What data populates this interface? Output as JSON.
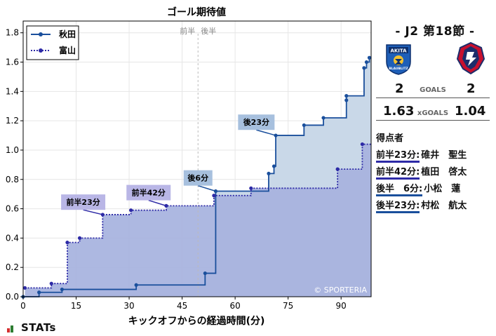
{
  "header": {
    "match_title": "- J2 第18節 -"
  },
  "teams": {
    "home": {
      "name": "秋田",
      "color": "#1a4f9c",
      "fill": "#c9d8e8",
      "emblem_icon": "blaublitz-akita-emblem-icon",
      "emblem_text_top": "AKITA",
      "emblem_text_bottom": "BLAUBLITZ"
    },
    "away": {
      "name": "富山",
      "color": "#2d2aa6",
      "fill": "#c9c6ec",
      "emblem_icon": "kataller-toyama-emblem-icon"
    }
  },
  "score": {
    "home_goals": "2",
    "away_goals": "2",
    "goals_label": "GOALS",
    "home_xg": "1.63",
    "away_xg": "1.04",
    "xg_label": "xGOALS"
  },
  "scorers": {
    "title": "得点者",
    "items": [
      {
        "time": "前半23分:",
        "name": "碓井　聖生",
        "team": "away"
      },
      {
        "time": "前半42分:",
        "name": "植田　啓太",
        "team": "away"
      },
      {
        "time": "後半　6分:",
        "name": "小松　蓮",
        "team": "home"
      },
      {
        "time": "後半23分:",
        "name": "村松　航太",
        "team": "home"
      }
    ]
  },
  "branding": {
    "stats_logo": "STATs"
  },
  "chart_data": {
    "type": "line",
    "title": "ゴール期待値",
    "xlabel": "キックオフからの経過時間(分)",
    "ylabel": "",
    "xlim": [
      0,
      98.5
    ],
    "ylim": [
      0,
      1.88
    ],
    "xticks": [
      0,
      15,
      30,
      45,
      60,
      75,
      90
    ],
    "yticks": [
      0.0,
      0.2,
      0.4,
      0.6,
      0.8,
      1.0,
      1.2,
      1.4,
      1.6,
      1.8
    ],
    "grid": true,
    "legend_position": "top-left",
    "halftime": {
      "x": 49.5,
      "left_label": "前半",
      "right_label": "後半"
    },
    "watermark": "© SPORTERIA",
    "series": [
      {
        "name": "秋田",
        "team": "home",
        "style": "solid",
        "points": [
          [
            0,
            0.0
          ],
          [
            4.5,
            0.03
          ],
          [
            11,
            0.05
          ],
          [
            32,
            0.08
          ],
          [
            51.5,
            0.16
          ],
          [
            54.5,
            0.72
          ],
          [
            69.5,
            0.84
          ],
          [
            71,
            0.89
          ],
          [
            71.5,
            1.1
          ],
          [
            79.5,
            1.17
          ],
          [
            85,
            1.22
          ],
          [
            91.5,
            1.34
          ],
          [
            91.5,
            1.37
          ],
          [
            96.5,
            1.56
          ],
          [
            97.2,
            1.6
          ],
          [
            98,
            1.63
          ]
        ],
        "end_x": 98.5
      },
      {
        "name": "富山",
        "team": "away",
        "style": "dotted",
        "points": [
          [
            0.5,
            0.06
          ],
          [
            8,
            0.09
          ],
          [
            12.5,
            0.37
          ],
          [
            16,
            0.4
          ],
          [
            22.5,
            0.56
          ],
          [
            30.5,
            0.59
          ],
          [
            40.5,
            0.62
          ],
          [
            54,
            0.69
          ],
          [
            64.5,
            0.74
          ],
          [
            89,
            0.87
          ],
          [
            96,
            1.04
          ]
        ],
        "end_x": 98.5
      }
    ],
    "goal_annotations": [
      {
        "label": "前半23分",
        "team": "away",
        "x": 22.5,
        "y": 0.56,
        "box_x": 17,
        "box_y": 0.645
      },
      {
        "label": "前半42分",
        "team": "away",
        "x": 40.5,
        "y": 0.62,
        "box_x": 35.5,
        "box_y": 0.71
      },
      {
        "label": "後6分",
        "team": "home",
        "x": 54.5,
        "y": 0.72,
        "box_x": 49.5,
        "box_y": 0.81
      },
      {
        "label": "後23分",
        "team": "home",
        "x": 71.5,
        "y": 1.1,
        "box_x": 66,
        "box_y": 1.19
      }
    ]
  }
}
